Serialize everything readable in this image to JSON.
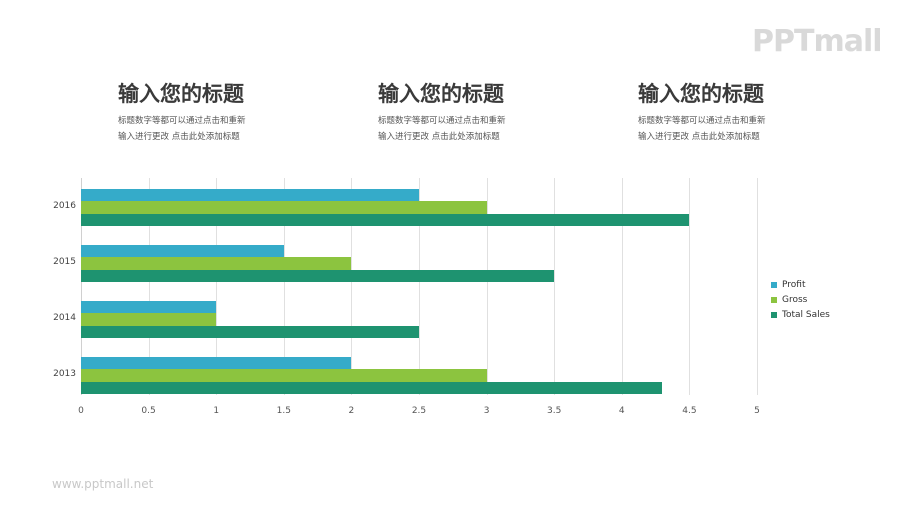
{
  "logo": {
    "text": "PPTmall"
  },
  "title_blocks": [
    {
      "heading": "输入您的标题",
      "desc_line1": "标题数字等都可以通过点击和重新",
      "desc_line2": "输入进行更改 点击此处添加标题"
    },
    {
      "heading": "输入您的标题",
      "desc_line1": "标题数字等都可以通过点击和重新",
      "desc_line2": "输入进行更改 点击此处添加标题"
    },
    {
      "heading": "输入您的标题",
      "desc_line1": "标题数字等都可以通过点击和重新",
      "desc_line2": "输入进行更改 点击此处添加标题"
    }
  ],
  "footer": {
    "url": "www.pptmall.net"
  },
  "colors": {
    "profit": "#35abc9",
    "gross": "#8cc43f",
    "total_sales": "#1e9370"
  },
  "chart_data": {
    "type": "bar",
    "orientation": "horizontal",
    "title": "",
    "xlabel": "",
    "ylabel": "",
    "categories": [
      "2013",
      "2014",
      "2015",
      "2016"
    ],
    "series": [
      {
        "name": "Profit",
        "color": "#35abc9",
        "values": [
          2,
          1,
          1.5,
          2.5
        ]
      },
      {
        "name": "Gross",
        "color": "#8cc43f",
        "values": [
          3,
          1,
          2,
          3
        ]
      },
      {
        "name": "Total Sales",
        "color": "#1e9370",
        "values": [
          4.3,
          2.5,
          3.5,
          4.5
        ]
      }
    ],
    "xlim": [
      0,
      5
    ],
    "x_ticks": [
      "0",
      "0.5",
      "1",
      "1.5",
      "2",
      "2.5",
      "3",
      "3.5",
      "4",
      "4.5",
      "5"
    ],
    "grid": true,
    "legend_position": "right"
  }
}
